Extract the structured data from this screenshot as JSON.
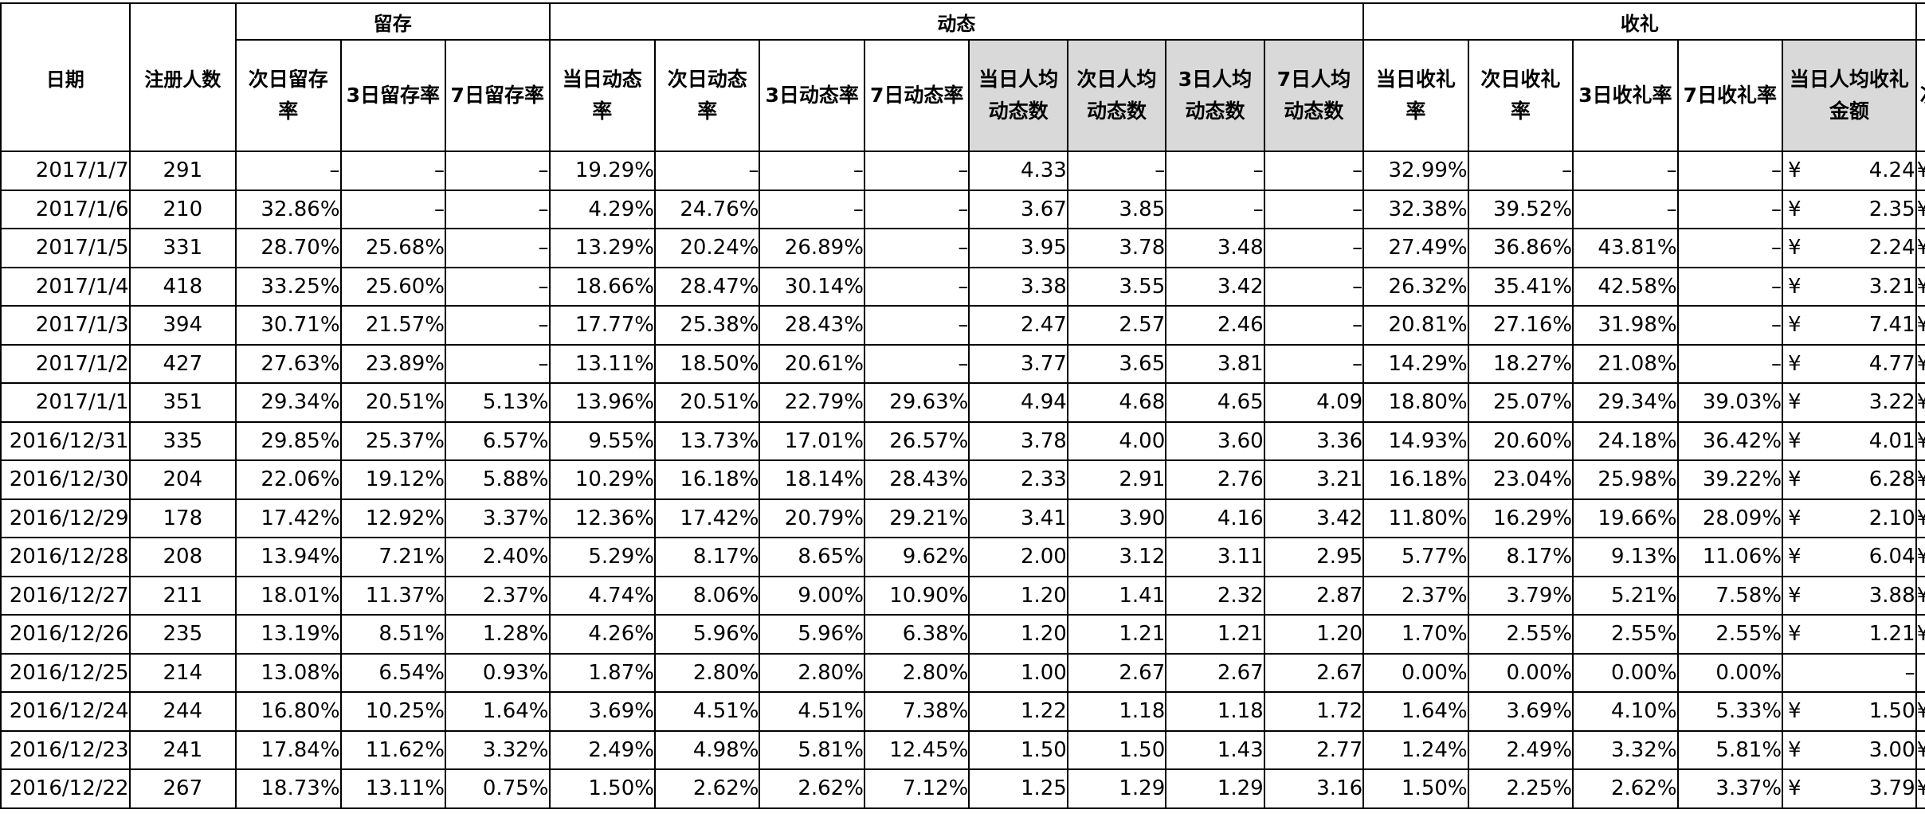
{
  "groups": {
    "retention": "留存",
    "activity": "动态",
    "gift": "收礼"
  },
  "headers": {
    "date": "日期",
    "registrations": "注册人数",
    "next_day_retention": "次日留存率",
    "d3_retention": "3日留存率",
    "d7_retention": "7日留存率",
    "same_day_activity": "当日动态率",
    "next_day_activity": "次日动态率",
    "d3_activity": "3日动态率",
    "d7_activity": "7日动态率",
    "same_day_avg_posts": "当日人均动态数",
    "next_day_avg_posts": "次日人均动态数",
    "d3_avg_posts": "3日人均动态数",
    "d7_avg_posts": "7日人均动态数",
    "same_day_gift": "当日收礼率",
    "next_day_gift": "次日收礼率",
    "d3_gift": "3日收礼率",
    "d7_gift": "7日收礼率",
    "same_day_avg_gift_amount": "当日人均收礼金额",
    "clipped_next": "次"
  },
  "currency_symbol": "¥",
  "rows": [
    {
      "date": "2017/1/7",
      "reg": "291",
      "r1": "–",
      "r3": "–",
      "r7": "–",
      "a0": "19.29%",
      "a1": "–",
      "a3": "–",
      "a7": "–",
      "p0": "4.33",
      "p1": "–",
      "p3": "–",
      "p7": "–",
      "g0": "32.99%",
      "g1": "–",
      "g3": "–",
      "g7": "–",
      "m0": "4.24",
      "clip": "¥"
    },
    {
      "date": "2017/1/6",
      "reg": "210",
      "r1": "32.86%",
      "r3": "–",
      "r7": "–",
      "a0": "4.29%",
      "a1": "24.76%",
      "a3": "–",
      "a7": "–",
      "p0": "3.67",
      "p1": "3.85",
      "p3": "–",
      "p7": "–",
      "g0": "32.38%",
      "g1": "39.52%",
      "g3": "–",
      "g7": "–",
      "m0": "2.35",
      "clip": "¥"
    },
    {
      "date": "2017/1/5",
      "reg": "331",
      "r1": "28.70%",
      "r3": "25.68%",
      "r7": "–",
      "a0": "13.29%",
      "a1": "20.24%",
      "a3": "26.89%",
      "a7": "–",
      "p0": "3.95",
      "p1": "3.78",
      "p3": "3.48",
      "p7": "–",
      "g0": "27.49%",
      "g1": "36.86%",
      "g3": "43.81%",
      "g7": "–",
      "m0": "2.24",
      "clip": "¥"
    },
    {
      "date": "2017/1/4",
      "reg": "418",
      "r1": "33.25%",
      "r3": "25.60%",
      "r7": "–",
      "a0": "18.66%",
      "a1": "28.47%",
      "a3": "30.14%",
      "a7": "–",
      "p0": "3.38",
      "p1": "3.55",
      "p3": "3.42",
      "p7": "–",
      "g0": "26.32%",
      "g1": "35.41%",
      "g3": "42.58%",
      "g7": "–",
      "m0": "3.21",
      "clip": "¥"
    },
    {
      "date": "2017/1/3",
      "reg": "394",
      "r1": "30.71%",
      "r3": "21.57%",
      "r7": "–",
      "a0": "17.77%",
      "a1": "25.38%",
      "a3": "28.43%",
      "a7": "–",
      "p0": "2.47",
      "p1": "2.57",
      "p3": "2.46",
      "p7": "–",
      "g0": "20.81%",
      "g1": "27.16%",
      "g3": "31.98%",
      "g7": "–",
      "m0": "7.41",
      "clip": "¥"
    },
    {
      "date": "2017/1/2",
      "reg": "427",
      "r1": "27.63%",
      "r3": "23.89%",
      "r7": "–",
      "a0": "13.11%",
      "a1": "18.50%",
      "a3": "20.61%",
      "a7": "–",
      "p0": "3.77",
      "p1": "3.65",
      "p3": "3.81",
      "p7": "–",
      "g0": "14.29%",
      "g1": "18.27%",
      "g3": "21.08%",
      "g7": "–",
      "m0": "4.77",
      "clip": "¥"
    },
    {
      "date": "2017/1/1",
      "reg": "351",
      "r1": "29.34%",
      "r3": "20.51%",
      "r7": "5.13%",
      "a0": "13.96%",
      "a1": "20.51%",
      "a3": "22.79%",
      "a7": "29.63%",
      "p0": "4.94",
      "p1": "4.68",
      "p3": "4.65",
      "p7": "4.09",
      "g0": "18.80%",
      "g1": "25.07%",
      "g3": "29.34%",
      "g7": "39.03%",
      "m0": "3.22",
      "clip": "¥"
    },
    {
      "date": "2016/12/31",
      "reg": "335",
      "r1": "29.85%",
      "r3": "25.37%",
      "r7": "6.57%",
      "a0": "9.55%",
      "a1": "13.73%",
      "a3": "17.01%",
      "a7": "26.57%",
      "p0": "3.78",
      "p1": "4.00",
      "p3": "3.60",
      "p7": "3.36",
      "g0": "14.93%",
      "g1": "20.60%",
      "g3": "24.18%",
      "g7": "36.42%",
      "m0": "4.01",
      "clip": "¥"
    },
    {
      "date": "2016/12/30",
      "reg": "204",
      "r1": "22.06%",
      "r3": "19.12%",
      "r7": "5.88%",
      "a0": "10.29%",
      "a1": "16.18%",
      "a3": "18.14%",
      "a7": "28.43%",
      "p0": "2.33",
      "p1": "2.91",
      "p3": "2.76",
      "p7": "3.21",
      "g0": "16.18%",
      "g1": "23.04%",
      "g3": "25.98%",
      "g7": "39.22%",
      "m0": "6.28",
      "clip": "¥"
    },
    {
      "date": "2016/12/29",
      "reg": "178",
      "r1": "17.42%",
      "r3": "12.92%",
      "r7": "3.37%",
      "a0": "12.36%",
      "a1": "17.42%",
      "a3": "20.79%",
      "a7": "29.21%",
      "p0": "3.41",
      "p1": "3.90",
      "p3": "4.16",
      "p7": "3.42",
      "g0": "11.80%",
      "g1": "16.29%",
      "g3": "19.66%",
      "g7": "28.09%",
      "m0": "2.10",
      "clip": "¥"
    },
    {
      "date": "2016/12/28",
      "reg": "208",
      "r1": "13.94%",
      "r3": "7.21%",
      "r7": "2.40%",
      "a0": "5.29%",
      "a1": "8.17%",
      "a3": "8.65%",
      "a7": "9.62%",
      "p0": "2.00",
      "p1": "3.12",
      "p3": "3.11",
      "p7": "2.95",
      "g0": "5.77%",
      "g1": "8.17%",
      "g3": "9.13%",
      "g7": "11.06%",
      "m0": "6.04",
      "clip": "¥"
    },
    {
      "date": "2016/12/27",
      "reg": "211",
      "r1": "18.01%",
      "r3": "11.37%",
      "r7": "2.37%",
      "a0": "4.74%",
      "a1": "8.06%",
      "a3": "9.00%",
      "a7": "10.90%",
      "p0": "1.20",
      "p1": "1.41",
      "p3": "2.32",
      "p7": "2.87",
      "g0": "2.37%",
      "g1": "3.79%",
      "g3": "5.21%",
      "g7": "7.58%",
      "m0": "3.88",
      "clip": "¥"
    },
    {
      "date": "2016/12/26",
      "reg": "235",
      "r1": "13.19%",
      "r3": "8.51%",
      "r7": "1.28%",
      "a0": "4.26%",
      "a1": "5.96%",
      "a3": "5.96%",
      "a7": "6.38%",
      "p0": "1.20",
      "p1": "1.21",
      "p3": "1.21",
      "p7": "1.20",
      "g0": "1.70%",
      "g1": "2.55%",
      "g3": "2.55%",
      "g7": "2.55%",
      "m0": "1.21",
      "clip": "¥"
    },
    {
      "date": "2016/12/25",
      "reg": "214",
      "r1": "13.08%",
      "r3": "6.54%",
      "r7": "0.93%",
      "a0": "1.87%",
      "a1": "2.80%",
      "a3": "2.80%",
      "a7": "2.80%",
      "p0": "1.00",
      "p1": "2.67",
      "p3": "2.67",
      "p7": "2.67",
      "g0": "0.00%",
      "g1": "0.00%",
      "g3": "0.00%",
      "g7": "0.00%",
      "m0": "–",
      "clip": ""
    },
    {
      "date": "2016/12/24",
      "reg": "244",
      "r1": "16.80%",
      "r3": "10.25%",
      "r7": "1.64%",
      "a0": "3.69%",
      "a1": "4.51%",
      "a3": "4.51%",
      "a7": "7.38%",
      "p0": "1.22",
      "p1": "1.18",
      "p3": "1.18",
      "p7": "1.72",
      "g0": "1.64%",
      "g1": "3.69%",
      "g3": "4.10%",
      "g7": "5.33%",
      "m0": "1.50",
      "clip": "¥"
    },
    {
      "date": "2016/12/23",
      "reg": "241",
      "r1": "17.84%",
      "r3": "11.62%",
      "r7": "3.32%",
      "a0": "2.49%",
      "a1": "4.98%",
      "a3": "5.81%",
      "a7": "12.45%",
      "p0": "1.50",
      "p1": "1.50",
      "p3": "1.43",
      "p7": "2.77",
      "g0": "1.24%",
      "g1": "2.49%",
      "g3": "3.32%",
      "g7": "5.81%",
      "m0": "3.00",
      "clip": "¥"
    },
    {
      "date": "2016/12/22",
      "reg": "267",
      "r1": "18.73%",
      "r3": "13.11%",
      "r7": "0.75%",
      "a0": "1.50%",
      "a1": "2.62%",
      "a3": "2.62%",
      "a7": "7.12%",
      "p0": "1.25",
      "p1": "1.29",
      "p3": "1.29",
      "p7": "3.16",
      "g0": "1.50%",
      "g1": "2.25%",
      "g3": "2.62%",
      "g7": "3.37%",
      "m0": "3.79",
      "clip": "¥"
    }
  ],
  "colors": {
    "shaded_header": "#d9d9d9",
    "grid_line": "#000000"
  }
}
